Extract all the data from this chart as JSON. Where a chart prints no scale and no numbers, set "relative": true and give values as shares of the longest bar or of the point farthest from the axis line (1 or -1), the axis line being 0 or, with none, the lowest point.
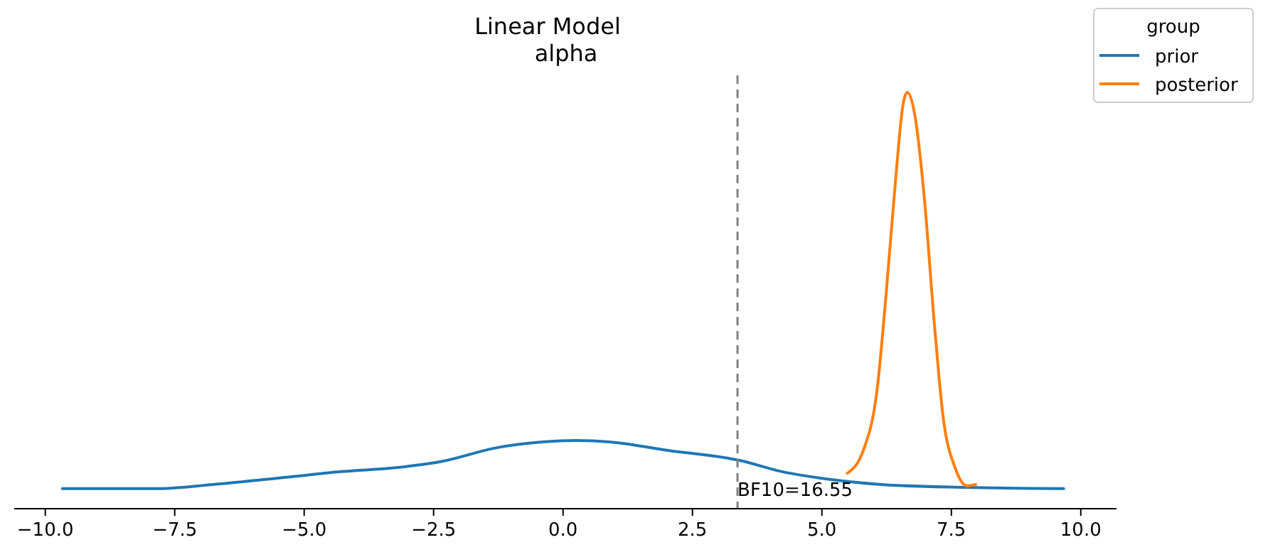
{
  "chart_data": {
    "type": "line",
    "title": "Linear Model",
    "subtitle": "alpha",
    "relative": true,
    "xlim": [
      -10.6,
      10.69
    ],
    "xticks": [
      {
        "value": -10,
        "label": "−10.0"
      },
      {
        "value": -7.5,
        "label": "−7.5"
      },
      {
        "value": -5,
        "label": "−5.0"
      },
      {
        "value": -2.5,
        "label": "−2.5"
      },
      {
        "value": 0,
        "label": "0.0"
      },
      {
        "value": 2.5,
        "label": "2.5"
      },
      {
        "value": 5,
        "label": "5.0"
      },
      {
        "value": 7.5,
        "label": "7.5"
      },
      {
        "value": 10,
        "label": "10.0"
      }
    ],
    "series": [
      {
        "name": "prior",
        "color": "#1f77b4",
        "x": [
          -9.67,
          -7.86,
          -6.76,
          -5.38,
          -4.29,
          -3.19,
          -2.36,
          -1.26,
          -0.44,
          0.25,
          0.93,
          2.03,
          3.41,
          4.23,
          5.05,
          6.15,
          7.8,
          9.67
        ],
        "values": [
          0.048,
          0.048,
          0.058,
          0.075,
          0.089,
          0.099,
          0.113,
          0.147,
          0.16,
          0.164,
          0.16,
          0.14,
          0.116,
          0.089,
          0.072,
          0.058,
          0.051,
          0.048
        ]
      },
      {
        "name": "posterior",
        "color": "#ff7f0e",
        "x": [
          5.49,
          5.8,
          6.07,
          6.24,
          6.43,
          6.57,
          6.65,
          6.79,
          6.98,
          7.17,
          7.34,
          7.58,
          7.8,
          7.97
        ],
        "values": [
          0.085,
          0.14,
          0.29,
          0.515,
          0.8,
          0.973,
          1,
          0.949,
          0.744,
          0.447,
          0.222,
          0.096,
          0.055,
          0.058
        ]
      }
    ],
    "ref_lines": [
      {
        "axis": "x",
        "value": 3.37,
        "color": "#808080",
        "line_style": "dashed"
      }
    ],
    "annotations": [
      {
        "text": "BF10=16.55",
        "x": 3.37,
        "y": 0.03
      }
    ],
    "legend_title": "group",
    "legend": "top right",
    "grid": false
  }
}
